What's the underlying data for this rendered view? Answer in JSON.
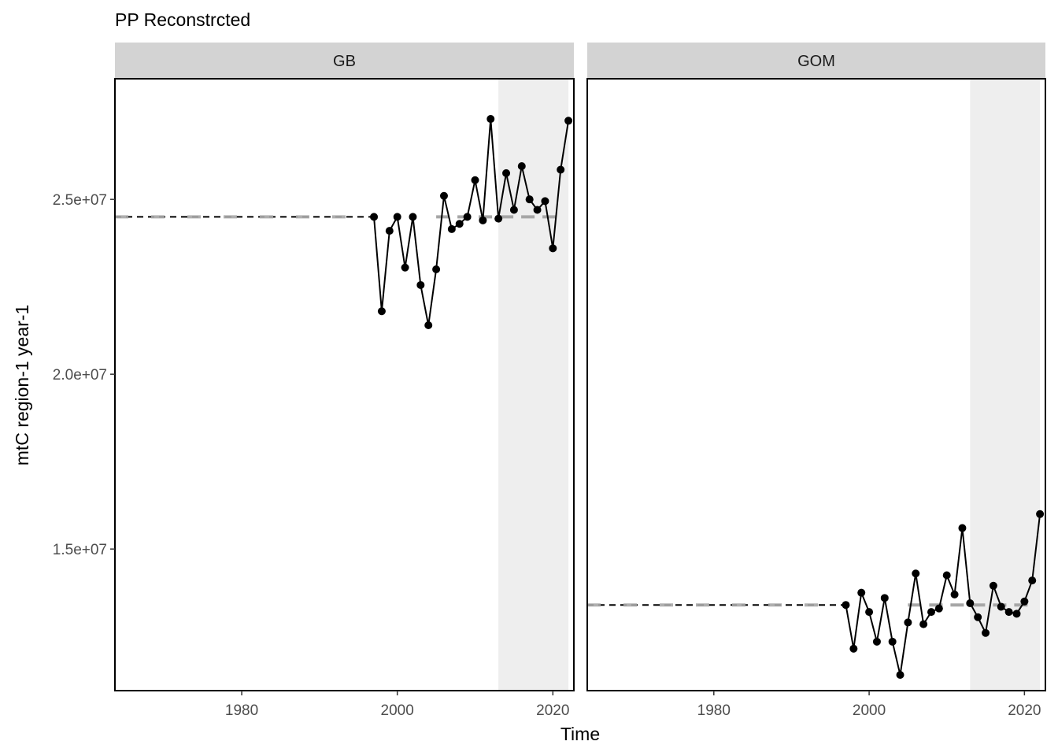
{
  "chart_data": {
    "type": "line",
    "title": "PP Reconstrcted",
    "xlabel": "Time",
    "ylabel": "mtC region-1 year-1",
    "xlim": [
      1963.7,
      2022.7
    ],
    "ylim": [
      10950000,
      28450000
    ],
    "x_ticks": [
      1980,
      2000,
      2020
    ],
    "y_ticks": [
      15000000,
      20000000,
      25000000
    ],
    "y_tick_labels": [
      "1.5e+07",
      "2.0e+07",
      "2.5e+07"
    ],
    "grid": false,
    "shaded_region": [
      2013,
      2022
    ],
    "colors": {
      "series": "#000000",
      "mean_line": "#000000",
      "mean_line_recent": "#a6a6a6",
      "shade": "#eeeeee",
      "strip": "#d3d3d3"
    },
    "panels": [
      {
        "name": "GB",
        "x": [
          1997,
          1998,
          1999,
          2000,
          2001,
          2002,
          2003,
          2004,
          2005,
          2006,
          2007,
          2008,
          2009,
          2010,
          2011,
          2012,
          2013,
          2014,
          2015,
          2016,
          2017,
          2018,
          2019,
          2020,
          2021,
          2022
        ],
        "values": [
          24500000,
          21800000,
          24100000,
          24500000,
          23050000,
          24500000,
          22550000,
          21400000,
          23000000,
          25100000,
          24150000,
          24300000,
          24500000,
          25550000,
          24400000,
          27300000,
          24450000,
          25750000,
          24700000,
          25950000,
          25000000,
          24700000,
          24950000,
          23600000,
          25850000,
          27250000
        ],
        "mean": 24500000
      },
      {
        "name": "GOM",
        "x": [
          1997,
          1998,
          1999,
          2000,
          2001,
          2002,
          2003,
          2004,
          2005,
          2006,
          2007,
          2008,
          2009,
          2010,
          2011,
          2012,
          2013,
          2014,
          2015,
          2016,
          2017,
          2018,
          2019,
          2020,
          2021,
          2022
        ],
        "values": [
          13400000,
          12150000,
          13750000,
          13200000,
          12350000,
          13600000,
          12350000,
          11400000,
          12900000,
          14300000,
          12850000,
          13200000,
          13300000,
          14250000,
          13700000,
          15600000,
          13450000,
          13050000,
          12600000,
          13950000,
          13350000,
          13200000,
          13150000,
          13500000,
          14100000,
          16000000
        ],
        "mean": 13400000
      }
    ]
  }
}
